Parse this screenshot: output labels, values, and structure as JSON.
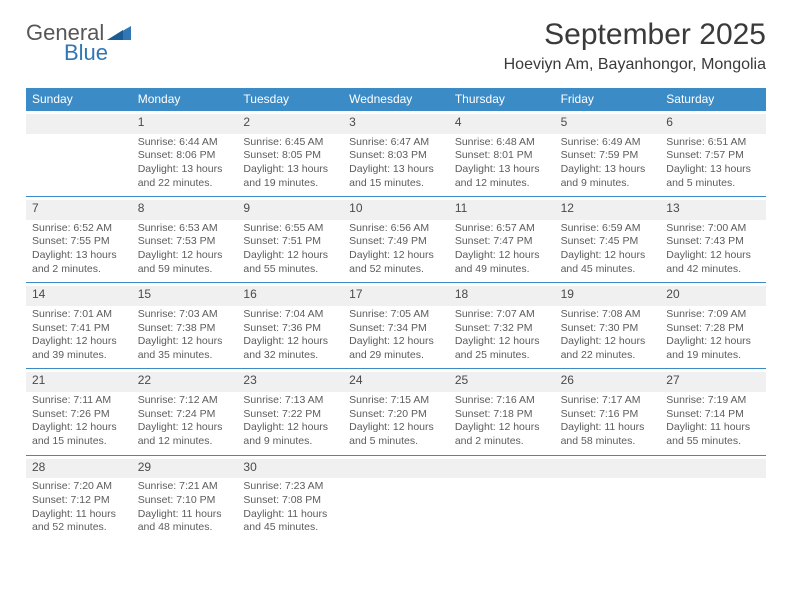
{
  "logo": {
    "general": "General",
    "blue": "Blue"
  },
  "title": "September 2025",
  "location": "Hoeviyn Am, Bayanhongor, Mongolia",
  "colors": {
    "header_blue": "#3b8bc6",
    "logo_dark": "#575757",
    "logo_blue": "#2f77b5",
    "row_alt": "#f0f0f0",
    "text_gray": "#5c5c5c"
  },
  "day_names": [
    "Sunday",
    "Monday",
    "Tuesday",
    "Wednesday",
    "Thursday",
    "Friday",
    "Saturday"
  ],
  "weeks": [
    [
      {
        "n": "",
        "sr": "",
        "ss": "",
        "dl": ""
      },
      {
        "n": "1",
        "sr": "Sunrise: 6:44 AM",
        "ss": "Sunset: 8:06 PM",
        "dl": "Daylight: 13 hours and 22 minutes."
      },
      {
        "n": "2",
        "sr": "Sunrise: 6:45 AM",
        "ss": "Sunset: 8:05 PM",
        "dl": "Daylight: 13 hours and 19 minutes."
      },
      {
        "n": "3",
        "sr": "Sunrise: 6:47 AM",
        "ss": "Sunset: 8:03 PM",
        "dl": "Daylight: 13 hours and 15 minutes."
      },
      {
        "n": "4",
        "sr": "Sunrise: 6:48 AM",
        "ss": "Sunset: 8:01 PM",
        "dl": "Daylight: 13 hours and 12 minutes."
      },
      {
        "n": "5",
        "sr": "Sunrise: 6:49 AM",
        "ss": "Sunset: 7:59 PM",
        "dl": "Daylight: 13 hours and 9 minutes."
      },
      {
        "n": "6",
        "sr": "Sunrise: 6:51 AM",
        "ss": "Sunset: 7:57 PM",
        "dl": "Daylight: 13 hours and 5 minutes."
      }
    ],
    [
      {
        "n": "7",
        "sr": "Sunrise: 6:52 AM",
        "ss": "Sunset: 7:55 PM",
        "dl": "Daylight: 13 hours and 2 minutes."
      },
      {
        "n": "8",
        "sr": "Sunrise: 6:53 AM",
        "ss": "Sunset: 7:53 PM",
        "dl": "Daylight: 12 hours and 59 minutes."
      },
      {
        "n": "9",
        "sr": "Sunrise: 6:55 AM",
        "ss": "Sunset: 7:51 PM",
        "dl": "Daylight: 12 hours and 55 minutes."
      },
      {
        "n": "10",
        "sr": "Sunrise: 6:56 AM",
        "ss": "Sunset: 7:49 PM",
        "dl": "Daylight: 12 hours and 52 minutes."
      },
      {
        "n": "11",
        "sr": "Sunrise: 6:57 AM",
        "ss": "Sunset: 7:47 PM",
        "dl": "Daylight: 12 hours and 49 minutes."
      },
      {
        "n": "12",
        "sr": "Sunrise: 6:59 AM",
        "ss": "Sunset: 7:45 PM",
        "dl": "Daylight: 12 hours and 45 minutes."
      },
      {
        "n": "13",
        "sr": "Sunrise: 7:00 AM",
        "ss": "Sunset: 7:43 PM",
        "dl": "Daylight: 12 hours and 42 minutes."
      }
    ],
    [
      {
        "n": "14",
        "sr": "Sunrise: 7:01 AM",
        "ss": "Sunset: 7:41 PM",
        "dl": "Daylight: 12 hours and 39 minutes."
      },
      {
        "n": "15",
        "sr": "Sunrise: 7:03 AM",
        "ss": "Sunset: 7:38 PM",
        "dl": "Daylight: 12 hours and 35 minutes."
      },
      {
        "n": "16",
        "sr": "Sunrise: 7:04 AM",
        "ss": "Sunset: 7:36 PM",
        "dl": "Daylight: 12 hours and 32 minutes."
      },
      {
        "n": "17",
        "sr": "Sunrise: 7:05 AM",
        "ss": "Sunset: 7:34 PM",
        "dl": "Daylight: 12 hours and 29 minutes."
      },
      {
        "n": "18",
        "sr": "Sunrise: 7:07 AM",
        "ss": "Sunset: 7:32 PM",
        "dl": "Daylight: 12 hours and 25 minutes."
      },
      {
        "n": "19",
        "sr": "Sunrise: 7:08 AM",
        "ss": "Sunset: 7:30 PM",
        "dl": "Daylight: 12 hours and 22 minutes."
      },
      {
        "n": "20",
        "sr": "Sunrise: 7:09 AM",
        "ss": "Sunset: 7:28 PM",
        "dl": "Daylight: 12 hours and 19 minutes."
      }
    ],
    [
      {
        "n": "21",
        "sr": "Sunrise: 7:11 AM",
        "ss": "Sunset: 7:26 PM",
        "dl": "Daylight: 12 hours and 15 minutes."
      },
      {
        "n": "22",
        "sr": "Sunrise: 7:12 AM",
        "ss": "Sunset: 7:24 PM",
        "dl": "Daylight: 12 hours and 12 minutes."
      },
      {
        "n": "23",
        "sr": "Sunrise: 7:13 AM",
        "ss": "Sunset: 7:22 PM",
        "dl": "Daylight: 12 hours and 9 minutes."
      },
      {
        "n": "24",
        "sr": "Sunrise: 7:15 AM",
        "ss": "Sunset: 7:20 PM",
        "dl": "Daylight: 12 hours and 5 minutes."
      },
      {
        "n": "25",
        "sr": "Sunrise: 7:16 AM",
        "ss": "Sunset: 7:18 PM",
        "dl": "Daylight: 12 hours and 2 minutes."
      },
      {
        "n": "26",
        "sr": "Sunrise: 7:17 AM",
        "ss": "Sunset: 7:16 PM",
        "dl": "Daylight: 11 hours and 58 minutes."
      },
      {
        "n": "27",
        "sr": "Sunrise: 7:19 AM",
        "ss": "Sunset: 7:14 PM",
        "dl": "Daylight: 11 hours and 55 minutes."
      }
    ],
    [
      {
        "n": "28",
        "sr": "Sunrise: 7:20 AM",
        "ss": "Sunset: 7:12 PM",
        "dl": "Daylight: 11 hours and 52 minutes."
      },
      {
        "n": "29",
        "sr": "Sunrise: 7:21 AM",
        "ss": "Sunset: 7:10 PM",
        "dl": "Daylight: 11 hours and 48 minutes."
      },
      {
        "n": "30",
        "sr": "Sunrise: 7:23 AM",
        "ss": "Sunset: 7:08 PM",
        "dl": "Daylight: 11 hours and 45 minutes."
      },
      {
        "n": "",
        "sr": "",
        "ss": "",
        "dl": ""
      },
      {
        "n": "",
        "sr": "",
        "ss": "",
        "dl": ""
      },
      {
        "n": "",
        "sr": "",
        "ss": "",
        "dl": ""
      },
      {
        "n": "",
        "sr": "",
        "ss": "",
        "dl": ""
      }
    ]
  ]
}
